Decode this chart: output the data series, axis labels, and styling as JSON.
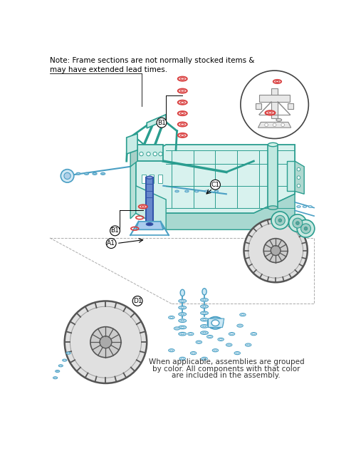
{
  "bg_color": "#ffffff",
  "note_text": "Note: Frame sections are not normally stocked items &\nmay have extended lead times.",
  "bottom_text_line1": "When applicable, assemblies are grouped",
  "bottom_text_line2": "by color. All components with that color",
  "bottom_text_line3": "are included in the assembly.",
  "label_A1": "A1",
  "label_B1_top": "B1",
  "label_B1_mid": "B1",
  "label_C1": "C1",
  "label_D1": "D1",
  "teal": "#2a9d8f",
  "teal_fill": "#d8f2ee",
  "teal_dark": "#1e7a6e",
  "blue": "#4a9fc4",
  "blue_fill": "#cce8f5",
  "red": "#d94040",
  "red_fill": "#f5c8c8",
  "gray": "#888888",
  "dark_gray": "#555555",
  "light_gray": "#dddddd",
  "fork_blue": "#3355aa",
  "fork_fill": "#6688cc"
}
